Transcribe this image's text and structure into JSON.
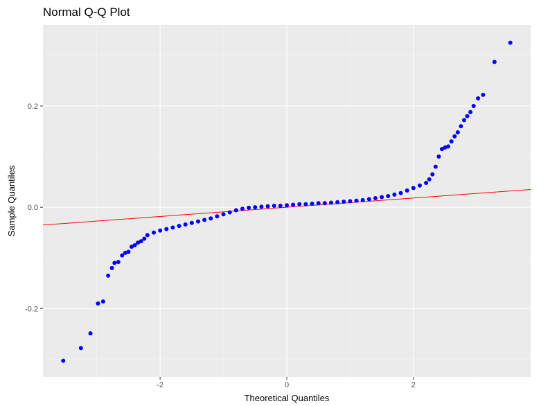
{
  "chart_data": {
    "type": "scatter",
    "title": "Normal Q-Q Plot",
    "xlabel": "Theoretical Quantiles",
    "ylabel": "Sample Quantiles",
    "xlim": [
      -3.85,
      3.85
    ],
    "ylim": [
      -0.335,
      0.36
    ],
    "x_ticks": [
      -2,
      0,
      2
    ],
    "x_tick_labels": [
      "-2",
      "0",
      "2"
    ],
    "y_ticks": [
      -0.2,
      0.0,
      0.2
    ],
    "y_tick_labels": [
      "-0.2",
      "0.0",
      "0.2"
    ],
    "grid": true,
    "background": "#ebebeb",
    "point_color": "#0000ff",
    "line_color": "#ff0000",
    "reference_line": {
      "intercept": 0.0,
      "slope": 0.0091
    },
    "points": {
      "x": [
        -3.53,
        -3.25,
        -3.1,
        -2.98,
        -2.9,
        -2.82,
        -2.76,
        -2.72,
        -2.66,
        -2.6,
        -2.55,
        -2.5,
        -2.45,
        -2.4,
        -2.35,
        -2.3,
        -2.25,
        -2.2,
        -2.1,
        -2.0,
        -1.9,
        -1.8,
        -1.7,
        -1.6,
        -1.5,
        -1.4,
        -1.3,
        -1.2,
        -1.1,
        -1.0,
        -0.9,
        -0.8,
        -0.7,
        -0.6,
        -0.5,
        -0.4,
        -0.3,
        -0.2,
        -0.1,
        0.0,
        0.1,
        0.2,
        0.3,
        0.4,
        0.5,
        0.6,
        0.7,
        0.8,
        0.9,
        1.0,
        1.1,
        1.2,
        1.3,
        1.4,
        1.5,
        1.6,
        1.7,
        1.8,
        1.9,
        2.0,
        2.1,
        2.2,
        2.25,
        2.3,
        2.35,
        2.4,
        2.45,
        2.5,
        2.55,
        2.6,
        2.65,
        2.7,
        2.75,
        2.8,
        2.85,
        2.9,
        2.95,
        3.02,
        3.1,
        3.28,
        3.53
      ],
      "y": [
        -0.303,
        -0.278,
        -0.249,
        -0.19,
        -0.186,
        -0.135,
        -0.12,
        -0.11,
        -0.108,
        -0.095,
        -0.09,
        -0.088,
        -0.078,
        -0.075,
        -0.07,
        -0.067,
        -0.062,
        -0.055,
        -0.05,
        -0.046,
        -0.043,
        -0.04,
        -0.037,
        -0.034,
        -0.031,
        -0.028,
        -0.025,
        -0.022,
        -0.018,
        -0.014,
        -0.01,
        -0.006,
        -0.003,
        -0.001,
        0.0,
        0.001,
        0.002,
        0.003,
        0.003,
        0.004,
        0.005,
        0.006,
        0.006,
        0.007,
        0.008,
        0.008,
        0.009,
        0.01,
        0.011,
        0.012,
        0.013,
        0.014,
        0.016,
        0.018,
        0.02,
        0.022,
        0.025,
        0.028,
        0.033,
        0.038,
        0.043,
        0.048,
        0.055,
        0.065,
        0.08,
        0.1,
        0.115,
        0.118,
        0.12,
        0.13,
        0.14,
        0.148,
        0.16,
        0.172,
        0.18,
        0.188,
        0.2,
        0.215,
        0.222,
        0.287,
        0.325
      ]
    }
  }
}
